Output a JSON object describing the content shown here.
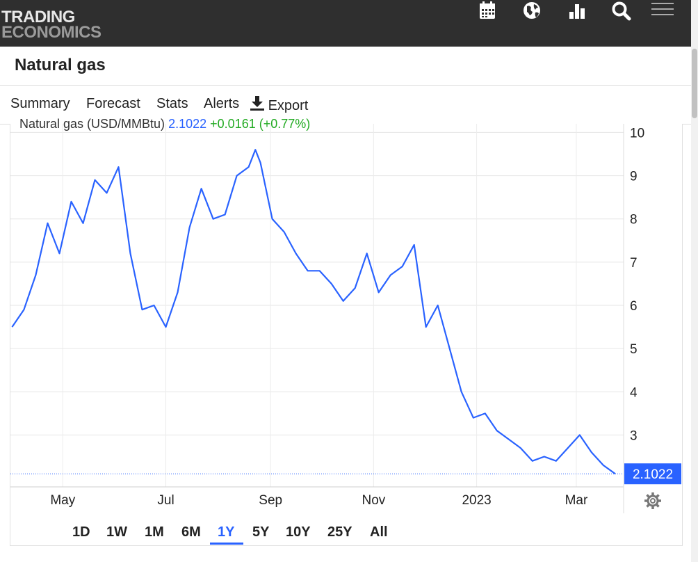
{
  "header": {
    "logo_line1": "TRADING",
    "logo_line2": "ECONOMICS",
    "icons": [
      "calendar-icon",
      "globe-icon",
      "bar-chart-icon",
      "search-icon",
      "menu-icon"
    ]
  },
  "page": {
    "title": "Natural gas"
  },
  "tabs": [
    {
      "label": "Summary"
    },
    {
      "label": "Forecast"
    },
    {
      "label": "Stats"
    },
    {
      "label": "Alerts"
    },
    {
      "label": "Export",
      "icon": "download-icon"
    }
  ],
  "legend": {
    "name": "Natural gas (USD/MMBtu)",
    "price": "2.1022",
    "change": "+0.0161 (+0.77%)"
  },
  "ranges": {
    "options": [
      "1D",
      "1W",
      "1M",
      "6M",
      "1Y",
      "5Y",
      "10Y",
      "25Y",
      "All"
    ],
    "active": "1Y"
  },
  "colors": {
    "line": "#2962ff",
    "change": "#22aa22",
    "topbar": "#2f2f2f"
  },
  "chart_data": {
    "type": "line",
    "series": [
      {
        "name": "Natural gas (USD/MMBtu)",
        "x": [
          "2022-04-01",
          "2022-04-08",
          "2022-04-15",
          "2022-04-22",
          "2022-04-29",
          "2022-05-06",
          "2022-05-13",
          "2022-05-20",
          "2022-05-27",
          "2022-06-03",
          "2022-06-10",
          "2022-06-17",
          "2022-06-24",
          "2022-07-01",
          "2022-07-08",
          "2022-07-15",
          "2022-07-22",
          "2022-07-29",
          "2022-08-05",
          "2022-08-12",
          "2022-08-19",
          "2022-08-23",
          "2022-08-26",
          "2022-09-02",
          "2022-09-09",
          "2022-09-16",
          "2022-09-23",
          "2022-09-30",
          "2022-10-07",
          "2022-10-14",
          "2022-10-21",
          "2022-10-28",
          "2022-11-04",
          "2022-11-11",
          "2022-11-18",
          "2022-11-25",
          "2022-12-02",
          "2022-12-09",
          "2022-12-16",
          "2022-12-23",
          "2022-12-30",
          "2023-01-06",
          "2023-01-13",
          "2023-01-20",
          "2023-01-27",
          "2023-02-03",
          "2023-02-10",
          "2023-02-17",
          "2023-02-24",
          "2023-03-03",
          "2023-03-10",
          "2023-03-17",
          "2023-03-24"
        ],
        "values": [
          5.5,
          5.9,
          6.7,
          7.9,
          7.2,
          8.4,
          7.9,
          8.9,
          8.6,
          9.2,
          7.2,
          5.9,
          6.0,
          5.5,
          6.3,
          7.8,
          8.7,
          8.0,
          8.1,
          9.0,
          9.2,
          9.6,
          9.3,
          8.0,
          7.7,
          7.2,
          6.8,
          6.8,
          6.5,
          6.1,
          6.4,
          7.2,
          6.3,
          6.7,
          6.9,
          7.4,
          5.5,
          6.0,
          5.0,
          4.0,
          3.4,
          3.5,
          3.1,
          2.9,
          2.7,
          2.4,
          2.5,
          2.4,
          2.7,
          3.0,
          2.6,
          2.3,
          2.1022
        ]
      }
    ],
    "y_ticks": [
      3,
      4,
      5,
      6,
      7,
      8,
      9,
      10
    ],
    "x_tick_labels": [
      "May",
      "Jul",
      "Sep",
      "Nov",
      "2023",
      "Mar"
    ],
    "ylim": [
      1.8,
      10.2
    ],
    "last_value": "2.1022",
    "grid": true
  }
}
